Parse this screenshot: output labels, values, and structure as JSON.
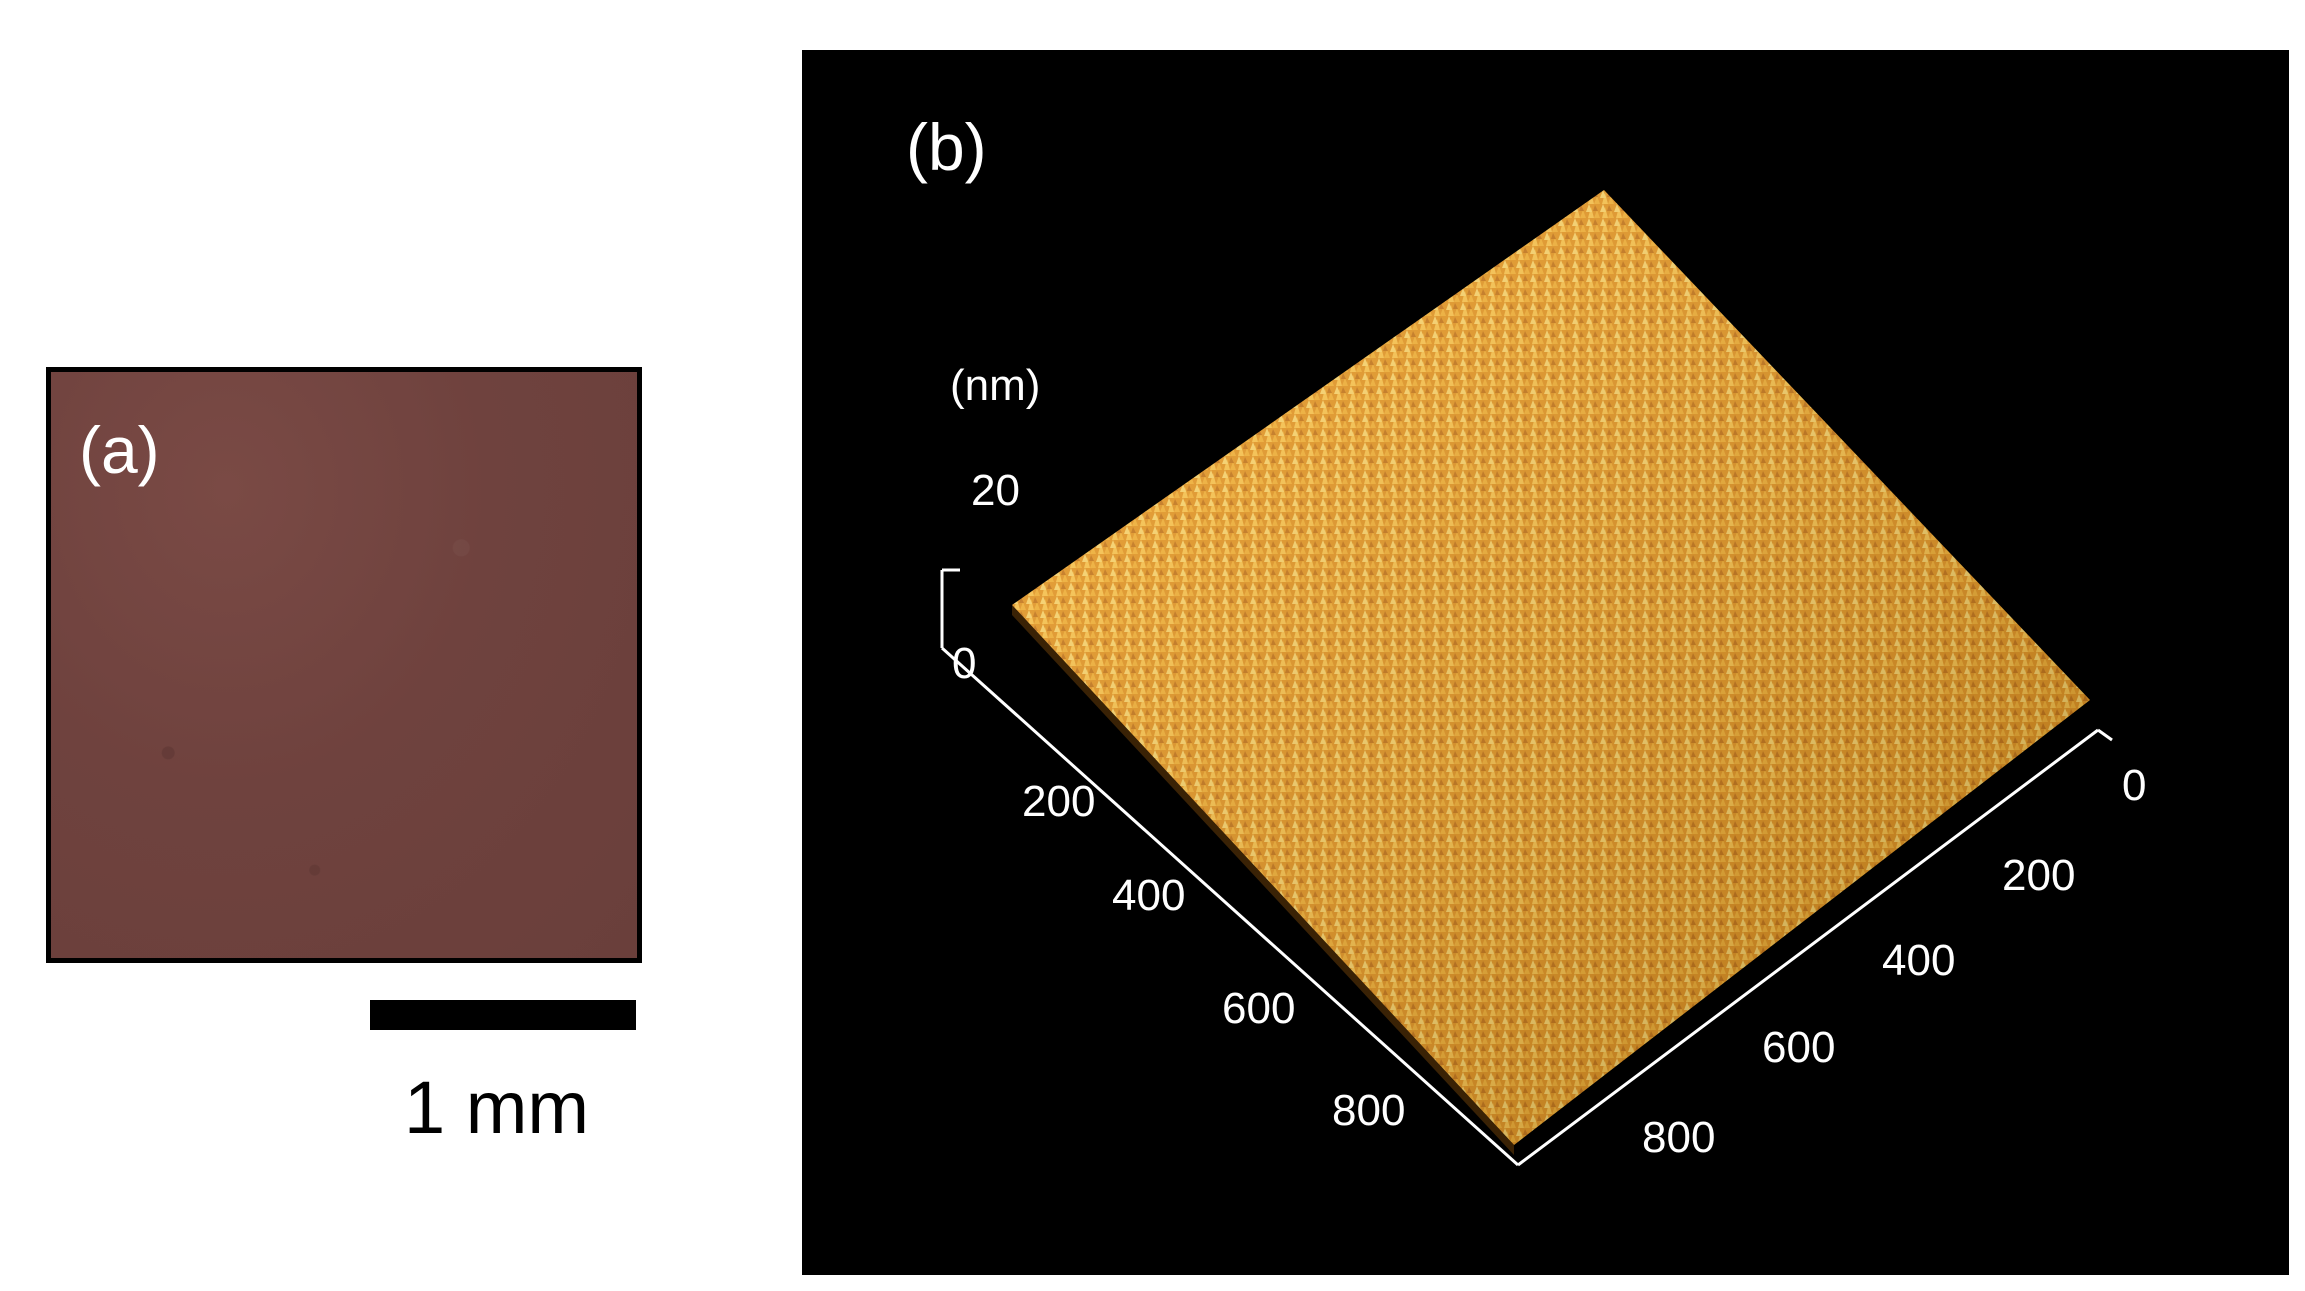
{
  "panel_a": {
    "label": "(a)",
    "scale_bar_label": "1 mm"
  },
  "panel_b": {
    "label": "(b)",
    "z_unit": "(nm)",
    "z_ticks": [
      "20",
      "0"
    ],
    "left_axis_ticks": [
      "200",
      "400",
      "600",
      "800"
    ],
    "right_axis_ticks": [
      "0",
      "200",
      "400",
      "600",
      "800"
    ],
    "surface_color": "#f2a01e"
  }
}
